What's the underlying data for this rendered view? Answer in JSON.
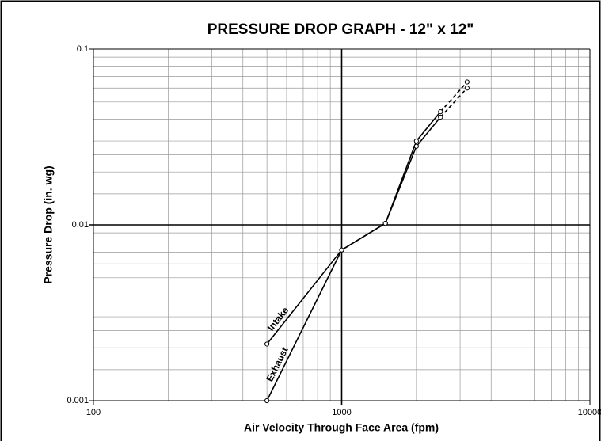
{
  "chart_data": {
    "type": "line",
    "title": "PRESSURE DROP GRAPH - 12\" x 12\"",
    "xlabel": "Air Velocity Through Face Area (fpm)",
    "ylabel": "Pressure Drop (in. wg)",
    "x": [
      500,
      1000,
      1500,
      2000,
      2500,
      3200
    ],
    "series": [
      {
        "name": "Intake",
        "color": "#000000",
        "values": [
          0.0021,
          0.0072,
          0.0102,
          0.03,
          0.044,
          0.065
        ],
        "dashed_segments": [
          4
        ]
      },
      {
        "name": "Exhaust",
        "color": "#000000",
        "values": [
          0.001,
          0.0072,
          0.0102,
          0.028,
          0.041,
          0.06
        ],
        "dashed_segments": [
          4
        ]
      }
    ],
    "xscale": "log",
    "yscale": "log",
    "xlim": [
      100,
      10000
    ],
    "ylim": [
      0.001,
      0.1
    ],
    "xticks": [
      100,
      1000,
      10000
    ],
    "yticks": [
      0.001,
      0.01,
      0.1
    ],
    "grid": true,
    "legend": "inline"
  }
}
